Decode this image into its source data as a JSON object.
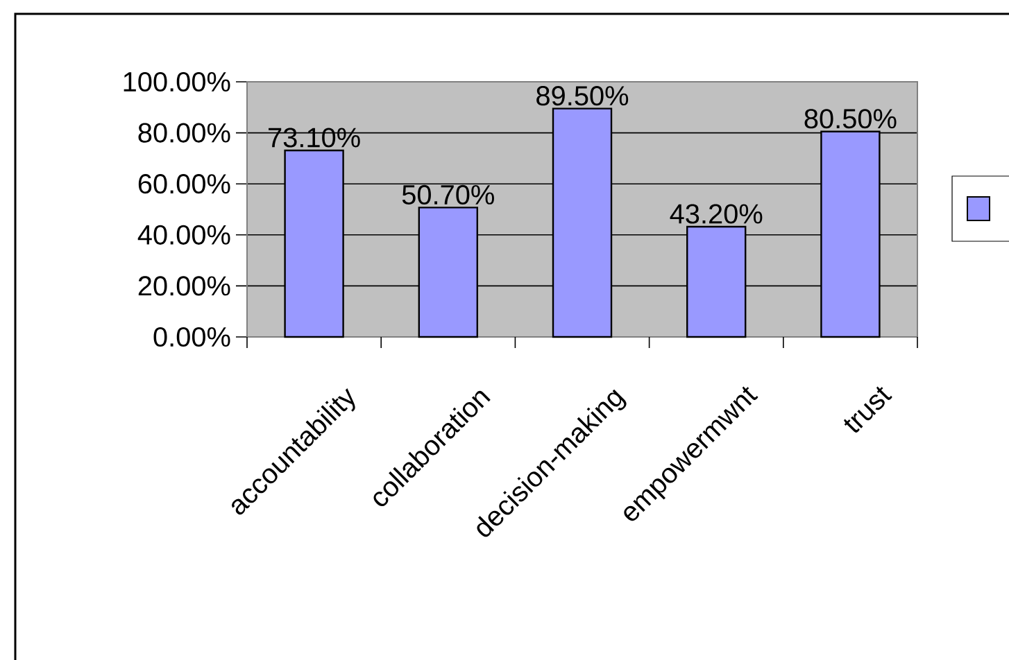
{
  "chart_data": {
    "type": "bar",
    "categories": [
      "accountability",
      "collaboration",
      "decision-making",
      "empowermwnt",
      "trust"
    ],
    "series": [
      {
        "color": "#9999ff",
        "values": [
          73.1,
          50.7,
          89.5,
          43.2,
          80.5
        ],
        "value_labels": [
          "73.10%",
          "50.70%",
          "89.50%",
          "43.20%",
          "80.50%"
        ]
      }
    ],
    "ylim": [
      0,
      100
    ],
    "yticks": [
      {
        "value": 0,
        "label": "0.00%"
      },
      {
        "value": 20,
        "label": "20.00%"
      },
      {
        "value": 40,
        "label": "40.00%"
      },
      {
        "value": 60,
        "label": "60.00%"
      },
      {
        "value": 80,
        "label": "80.00%"
      },
      {
        "value": 100,
        "label": "100.00%"
      }
    ],
    "grid": "y"
  }
}
